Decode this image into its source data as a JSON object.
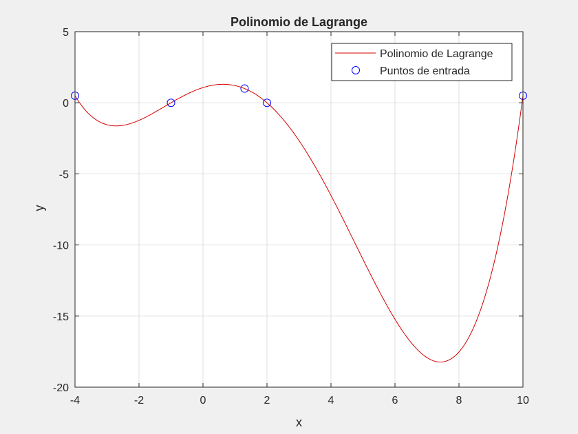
{
  "chart_data": {
    "type": "line",
    "title": "Polinomio de Lagrange",
    "xlabel": "x",
    "ylabel": "y",
    "xlim": [
      -4,
      10
    ],
    "ylim": [
      -20,
      5
    ],
    "xticks": [
      -4,
      -2,
      0,
      2,
      4,
      6,
      8,
      10
    ],
    "yticks": [
      5,
      0,
      -5,
      -10,
      -15,
      -20
    ],
    "grid": true,
    "legend_position": "top-right",
    "series": [
      {
        "name": "Polinomio de Lagrange",
        "style": "line",
        "color": "#d40000",
        "interpolation_points": [
          {
            "x": -4,
            "y": 0.5
          },
          {
            "x": -1,
            "y": 0
          },
          {
            "x": 1.3,
            "y": 1
          },
          {
            "x": 2,
            "y": 0
          },
          {
            "x": 10,
            "y": 0.5
          }
        ]
      },
      {
        "name": "Puntos de entrada",
        "style": "markers",
        "marker": "circle",
        "color": "#0000ff",
        "points": [
          {
            "x": -4,
            "y": 0.5
          },
          {
            "x": -1,
            "y": 0
          },
          {
            "x": 1.3,
            "y": 1
          },
          {
            "x": 2,
            "y": 0
          },
          {
            "x": 10,
            "y": 0.5
          }
        ]
      }
    ]
  }
}
